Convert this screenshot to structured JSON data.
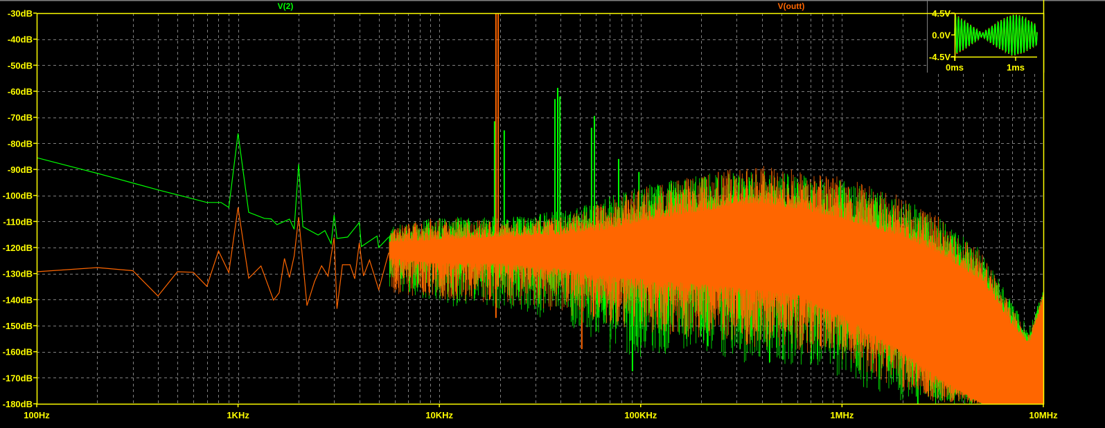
{
  "chart_data": [
    {
      "type": "line",
      "title": "",
      "xlabel": "",
      "ylabel": "",
      "x_scale": "log",
      "xlim": [
        100,
        10000000
      ],
      "ylim": [
        -180,
        -30
      ],
      "grid": true,
      "background": "#000000",
      "axis_color": "#ffff00",
      "grid_color": "#808080",
      "x_ticks": [
        {
          "value": 100,
          "label": "100Hz"
        },
        {
          "value": 1000,
          "label": "1KHz"
        },
        {
          "value": 10000,
          "label": "10KHz"
        },
        {
          "value": 100000,
          "label": "100KHz"
        },
        {
          "value": 1000000,
          "label": "1MHz"
        },
        {
          "value": 10000000,
          "label": "10MHz"
        }
      ],
      "y_ticks": [
        {
          "value": -30,
          "label": "-30dB"
        },
        {
          "value": -40,
          "label": "-40dB"
        },
        {
          "value": -50,
          "label": "-50dB"
        },
        {
          "value": -60,
          "label": "-60dB"
        },
        {
          "value": -70,
          "label": "-70dB"
        },
        {
          "value": -80,
          "label": "-80dB"
        },
        {
          "value": -90,
          "label": "-90dB"
        },
        {
          "value": -100,
          "label": "-100dB"
        },
        {
          "value": -110,
          "label": "-110dB"
        },
        {
          "value": -120,
          "label": "-120dB"
        },
        {
          "value": -130,
          "label": "-130dB"
        },
        {
          "value": -140,
          "label": "-140dB"
        },
        {
          "value": -150,
          "label": "-150dB"
        },
        {
          "value": -160,
          "label": "-160dB"
        },
        {
          "value": -170,
          "label": "-170dB"
        },
        {
          "value": -180,
          "label": "-180dB"
        }
      ],
      "legend_placement": "top",
      "series": [
        {
          "name": "V(2)",
          "color": "#00ff00",
          "points": [
            [
              100,
              -85.5
            ],
            [
              202,
              -91.6
            ],
            [
              303,
              -95.3
            ],
            [
              406,
              -98
            ],
            [
              604,
              -101.4
            ],
            [
              700,
              -102.7
            ],
            [
              823,
              -102.7
            ],
            [
              900,
              -104.6
            ],
            [
              1000,
              -76.2
            ],
            [
              1130,
              -106.5
            ],
            [
              1350,
              -108.8
            ],
            [
              1460,
              -109
            ],
            [
              1560,
              -111.2
            ],
            [
              1800,
              -109.1
            ],
            [
              1900,
              -113
            ],
            [
              2000,
              -88
            ],
            [
              2100,
              -112
            ],
            [
              2500,
              -115.2
            ],
            [
              2700,
              -113.5
            ],
            [
              2900,
              -118.5
            ],
            [
              3000,
              -107.5
            ],
            [
              3100,
              -116.5
            ],
            [
              3500,
              -116
            ],
            [
              4000,
              -110.4
            ],
            [
              4100,
              -119.6
            ],
            [
              4900,
              -115.6
            ],
            [
              5000,
              -120
            ],
            [
              5600,
              -116
            ]
          ],
          "noise_band": {
            "columns": [
              "freq",
              "core_high",
              "core_low",
              "peak_high",
              "peak_low"
            ],
            "rows": [
              [
                5600,
                -117,
                -123,
                -112,
                -135
              ],
              [
                10000,
                -116,
                -125,
                -108,
                -142
              ],
              [
                20000,
                -115,
                -126,
                -108,
                -145
              ],
              [
                40000,
                -114,
                -128,
                -106,
                -148
              ],
              [
                70000,
                -112,
                -130,
                -100,
                -160
              ],
              [
                100000,
                -109,
                -131,
                -96,
                -162
              ],
              [
                200000,
                -105,
                -133,
                -92,
                -160
              ],
              [
                350000,
                -102,
                -135,
                -90,
                -165
              ],
              [
                600000,
                -104,
                -137,
                -92,
                -165
              ],
              [
                1000000,
                -107,
                -145,
                -94,
                -170
              ],
              [
                2000000,
                -114,
                -158,
                -101,
                -180
              ],
              [
                3000000,
                -120,
                -168,
                -108,
                -180
              ],
              [
                5000000,
                -131,
                -180,
                -121,
                -180
              ],
              [
                7000000,
                -148,
                -180,
                -141,
                -180
              ],
              [
                8500000,
                -155,
                -180,
                -151,
                -180
              ],
              [
                10000000,
                -139,
                -180,
                -136,
                -180
              ]
            ]
          },
          "spikes": [
            [
              18800,
              -71.5,
              -125
            ],
            [
              21000,
              -75,
              -125
            ],
            [
              37500,
              -63,
              -125
            ],
            [
              38700,
              -58.7,
              -125
            ],
            [
              39700,
              -62,
              -125
            ],
            [
              57000,
              -74,
              -125
            ],
            [
              58900,
              -69.5,
              -125
            ],
            [
              77700,
              -86,
              -125
            ],
            [
              98000,
              -91,
              -125
            ],
            [
              91000,
              -120,
              -167.5
            ],
            [
              437000,
              -125,
              -164
            ],
            [
              2380000,
              -130,
              -180
            ]
          ]
        },
        {
          "name": "V(outt)",
          "color": "#ff6600",
          "points": [
            [
              100,
              -129.3
            ],
            [
              200,
              -127.7
            ],
            [
              300,
              -128.9
            ],
            [
              400,
              -138.6
            ],
            [
              500,
              -129.3
            ],
            [
              600,
              -129.5
            ],
            [
              700,
              -134.9
            ],
            [
              800,
              -121.3
            ],
            [
              900,
              -129.6
            ],
            [
              1000,
              -104.6
            ],
            [
              1130,
              -131.8
            ],
            [
              1300,
              -127.1
            ],
            [
              1500,
              -140.2
            ],
            [
              1600,
              -137.4
            ],
            [
              1700,
              -124.2
            ],
            [
              1800,
              -131.5
            ],
            [
              1900,
              -123.3
            ],
            [
              2000,
              -108.3
            ],
            [
              2200,
              -142.3
            ],
            [
              2400,
              -133
            ],
            [
              2600,
              -127
            ],
            [
              2800,
              -131
            ],
            [
              2900,
              -123
            ],
            [
              3000,
              -116.2
            ],
            [
              3100,
              -143.5
            ],
            [
              3300,
              -126.6
            ],
            [
              3600,
              -126.6
            ],
            [
              3800,
              -132
            ],
            [
              4000,
              -118.2
            ],
            [
              4200,
              -130.9
            ],
            [
              4500,
              -124.8
            ],
            [
              5000,
              -136.2
            ],
            [
              5600,
              -122
            ]
          ],
          "noise_band": {
            "columns": [
              "freq",
              "core_high",
              "core_low",
              "peak_high",
              "peak_low"
            ],
            "rows": [
              [
                5600,
                -118,
                -124,
                -112,
                -138
              ],
              [
                10000,
                -117,
                -126,
                -108,
                -140
              ],
              [
                20000,
                -116,
                -126,
                -110,
                -142
              ],
              [
                40000,
                -115,
                -128,
                -108,
                -145
              ],
              [
                70000,
                -113,
                -131,
                -102,
                -150
              ],
              [
                100000,
                -110,
                -132,
                -97,
                -152
              ],
              [
                200000,
                -106,
                -134,
                -92,
                -155
              ],
              [
                350000,
                -103,
                -136,
                -88,
                -158
              ],
              [
                600000,
                -105,
                -138,
                -90,
                -160
              ],
              [
                1000000,
                -109,
                -146,
                -93,
                -165
              ],
              [
                2000000,
                -116,
                -160,
                -100,
                -175
              ],
              [
                3000000,
                -122,
                -170,
                -108,
                -180
              ],
              [
                5000000,
                -133,
                -180,
                -122,
                -180
              ],
              [
                7000000,
                -150,
                -180,
                -143,
                -180
              ],
              [
                8500000,
                -157,
                -180,
                -153,
                -180
              ],
              [
                10000000,
                -140,
                -180,
                -137,
                -180
              ]
            ]
          },
          "spikes": [
            [
              19100,
              -30,
              -147
            ],
            [
              19600,
              -30,
              -135
            ],
            [
              51000,
              -120,
              -159
            ],
            [
              17800,
              -110,
              -140
            ]
          ]
        }
      ]
    },
    {
      "type": "line",
      "title": "",
      "xlabel": "",
      "ylabel": "",
      "xlim_ms": [
        0,
        1.35
      ],
      "ylim": [
        -4.5,
        4.5
      ],
      "x_ticks": [
        {
          "value": 0,
          "label": "0ms"
        },
        {
          "value": 1,
          "label": "1ms"
        }
      ],
      "y_ticks": [
        {
          "value": 4.5,
          "label": "4.5V"
        },
        {
          "value": 0,
          "label": "0.0V"
        },
        {
          "value": -4.5,
          "label": "-4.5V"
        }
      ],
      "series": [
        {
          "color": "#00ff00",
          "envelope_ms_v": [
            [
              0,
              4.2
            ],
            [
              0.2,
              2.6
            ],
            [
              0.45,
              0.3
            ],
            [
              0.7,
              2.6
            ],
            [
              0.95,
              4.3
            ],
            [
              1.1,
              3.9
            ],
            [
              1.35,
              2.0
            ]
          ]
        },
        {
          "color": "#ff6600",
          "envelope_ms_v": [
            [
              0,
              4.4
            ],
            [
              0.2,
              2.7
            ],
            [
              0.45,
              0.35
            ],
            [
              0.7,
              2.7
            ],
            [
              0.95,
              4.4
            ],
            [
              1.1,
              4.0
            ],
            [
              1.35,
              2.1
            ]
          ]
        }
      ]
    }
  ]
}
